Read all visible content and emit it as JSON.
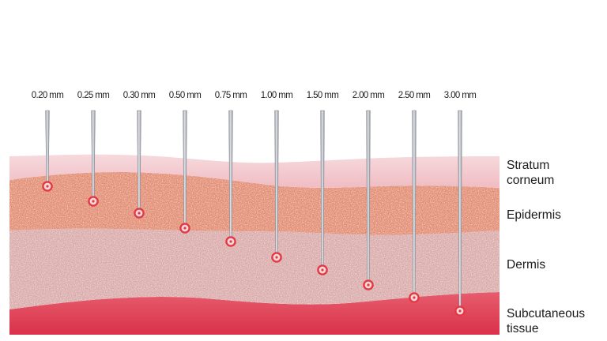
{
  "needles": [
    {
      "label": "0.20 mm",
      "depth_mm": 0.2
    },
    {
      "label": "0.25 mm",
      "depth_mm": 0.25
    },
    {
      "label": "0.30 mm",
      "depth_mm": 0.3
    },
    {
      "label": "0.50 mm",
      "depth_mm": 0.5
    },
    {
      "label": "0.75 mm",
      "depth_mm": 0.75
    },
    {
      "label": "1.00 mm",
      "depth_mm": 1.0
    },
    {
      "label": "1.50 mm",
      "depth_mm": 1.5
    },
    {
      "label": "2.00 mm",
      "depth_mm": 2.0
    },
    {
      "label": "2.50 mm",
      "depth_mm": 2.5
    },
    {
      "label": "3.00 mm",
      "depth_mm": 3.0
    }
  ],
  "layers": [
    {
      "name": "stratum-corneum",
      "label": "Stratum\ncorneum",
      "color": "#f4cdd2"
    },
    {
      "name": "epidermis",
      "label": "Epidermis",
      "color": "#e28c72"
    },
    {
      "name": "dermis",
      "label": "Dermis",
      "color": "#d9aaa9"
    },
    {
      "name": "subcutaneous-tissue",
      "label": "Subcutaneous\ntissue",
      "color": "#dc4358"
    }
  ],
  "colors": {
    "needle": "#b9bcc4",
    "needle_edge": "#7e828b",
    "tip_ring": "#e23a44"
  }
}
